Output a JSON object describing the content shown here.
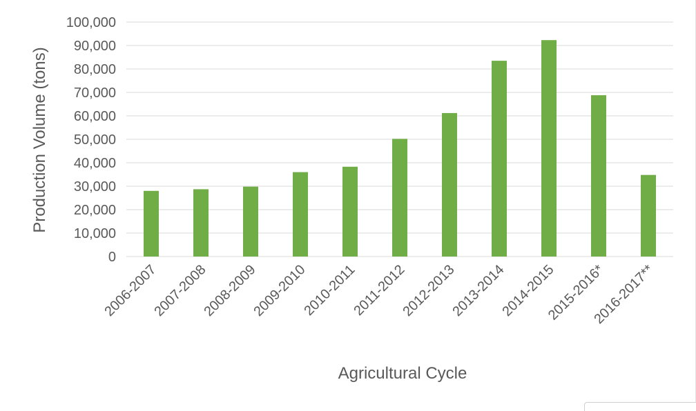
{
  "chart_data": {
    "type": "bar",
    "categories": [
      "2006-2007",
      "2007-2008",
      "2008-2009",
      "2009-2010",
      "2010-2011",
      "2011-2012",
      "2012-2013",
      "2013-2014",
      "2014-2015",
      "2015-2016*",
      "2016-2017**"
    ],
    "values": [
      28000,
      28700,
      29800,
      36000,
      38300,
      50200,
      61200,
      83500,
      92300,
      68800,
      34800
    ],
    "title": "",
    "xlabel": "Agricultural Cycle",
    "ylabel": "Production Volume (tons)",
    "ylim": [
      0,
      100000
    ],
    "yticks": [
      0,
      10000,
      20000,
      30000,
      40000,
      50000,
      60000,
      70000,
      80000,
      90000,
      100000
    ],
    "ytick_labels": [
      "0",
      "10,000",
      "20,000",
      "30,000",
      "40,000",
      "50,000",
      "60,000",
      "70,000",
      "80,000",
      "90,000",
      "100,000"
    ],
    "grid": true,
    "legend": "none",
    "bar_color": "#70ad47"
  }
}
